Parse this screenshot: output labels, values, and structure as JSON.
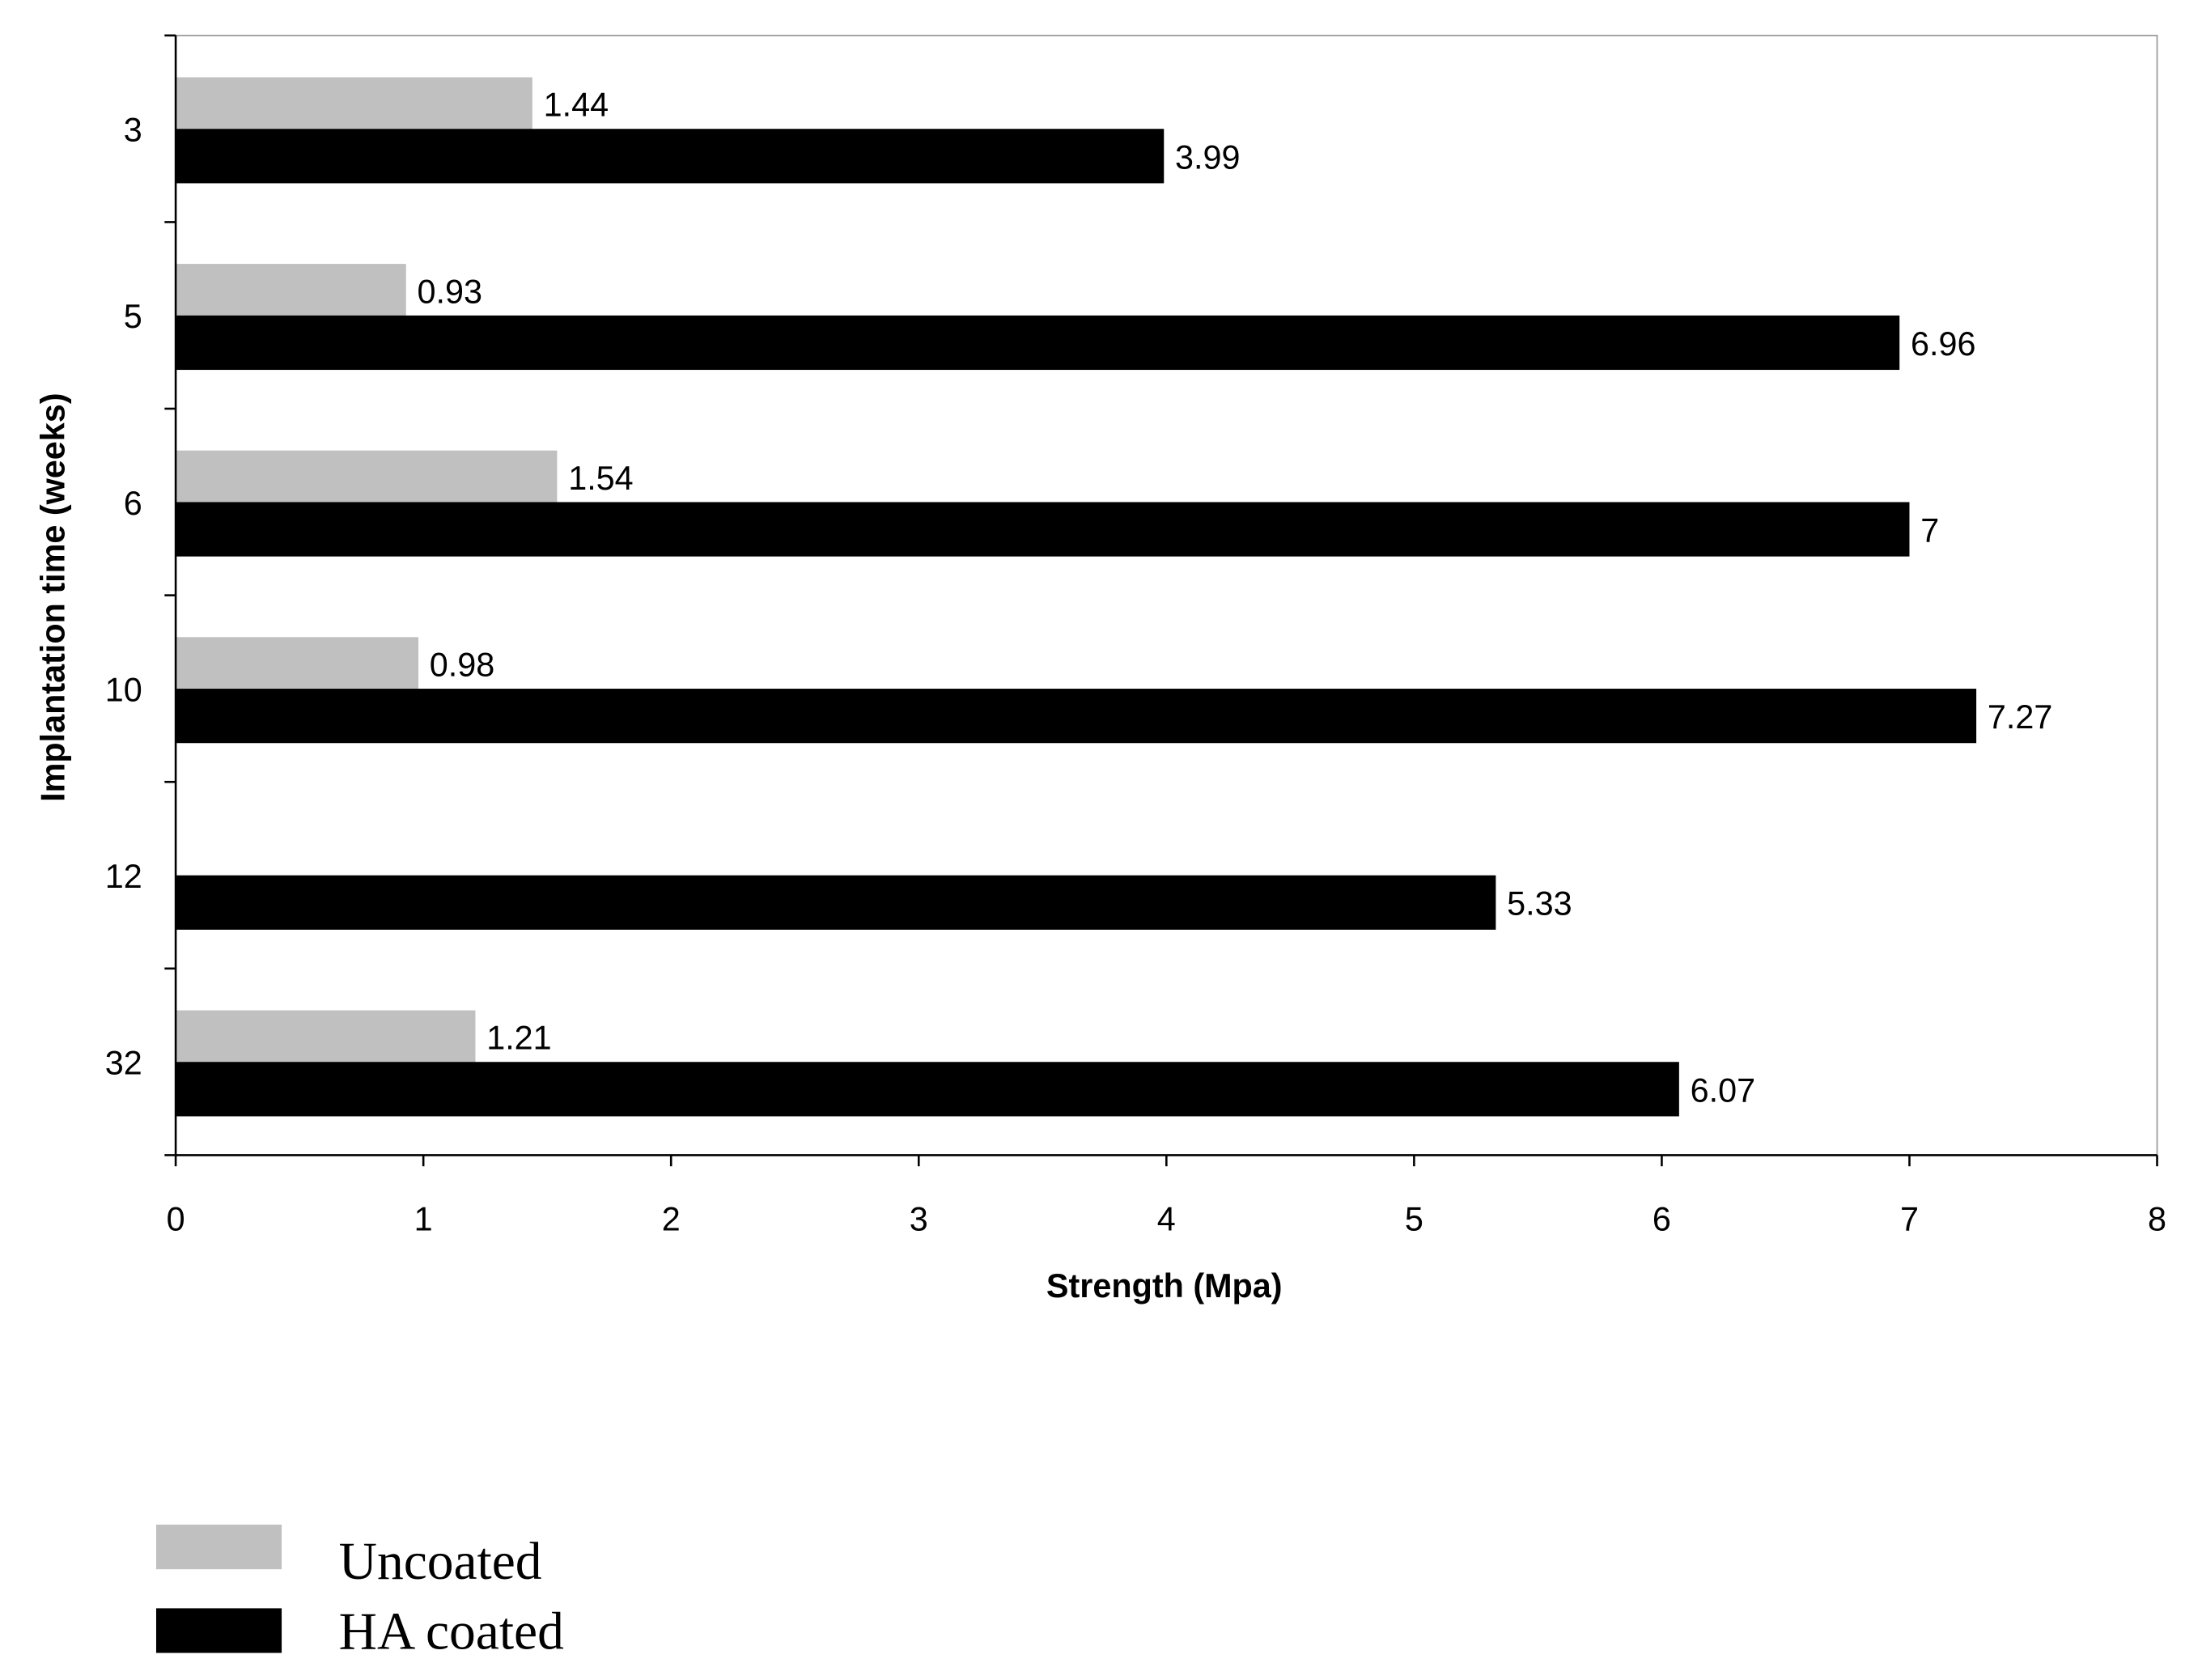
{
  "chart_data": {
    "type": "bar",
    "orientation": "horizontal",
    "categories": [
      "3",
      "5",
      "6",
      "10",
      "12",
      "32"
    ],
    "series": [
      {
        "name": "Uncoated",
        "color": "#c0c0c0",
        "values": [
          1.44,
          0.93,
          1.54,
          0.98,
          null,
          1.21
        ],
        "labels": [
          "1.44",
          "0.93",
          "1.54",
          "0.98",
          "",
          "1.21"
        ]
      },
      {
        "name": "HA coated",
        "color": "#000000",
        "values": [
          3.99,
          6.96,
          7,
          7.27,
          5.33,
          6.07
        ],
        "labels": [
          "3.99",
          "6.96",
          "7",
          "7.27",
          "5.33",
          "6.07"
        ]
      }
    ],
    "xlabel": "Strength (Mpa)",
    "ylabel": "Implantation time (weeks)",
    "xlim": [
      0,
      8
    ],
    "xticks": [
      "0",
      "1",
      "2",
      "3",
      "4",
      "5",
      "6",
      "7",
      "8"
    ],
    "grid": false,
    "legend_position": "bottom-left"
  }
}
